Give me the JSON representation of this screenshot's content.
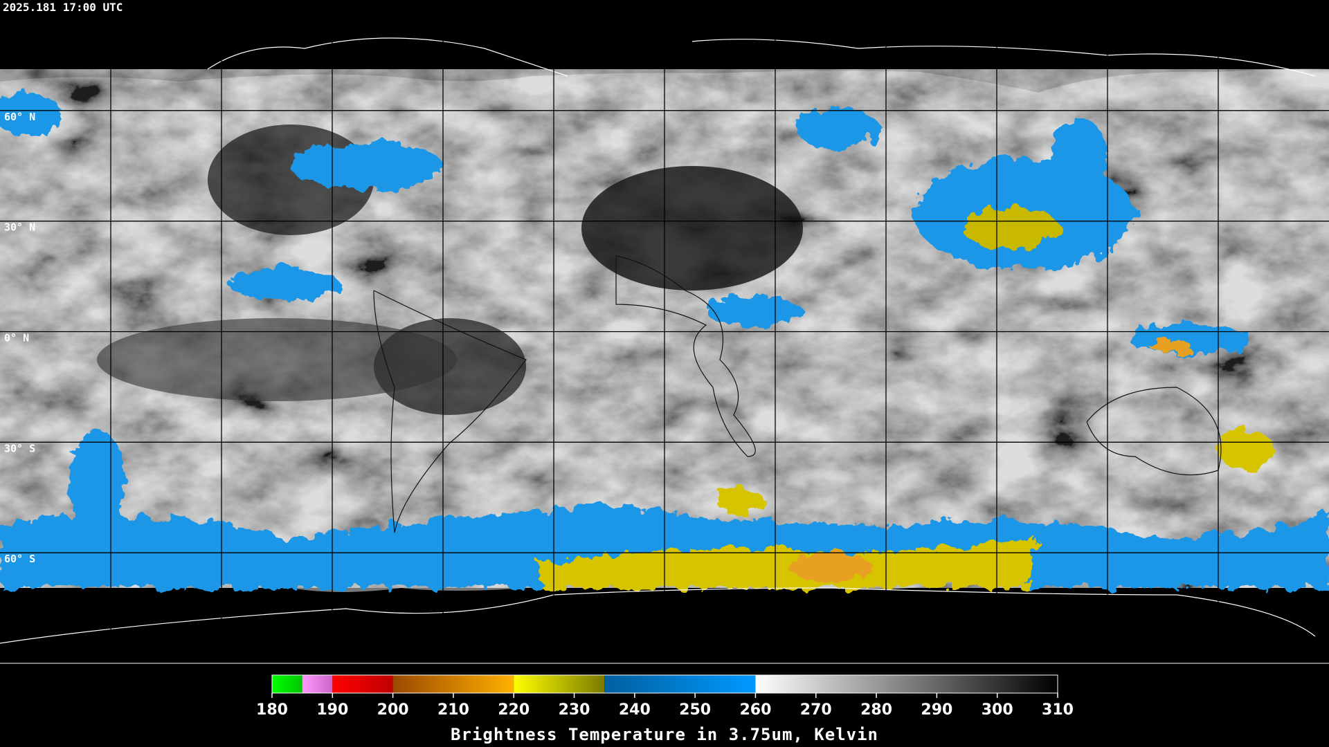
{
  "header": {
    "timestamp": "2025.181 17:00 UTC"
  },
  "map": {
    "lat_labels": [
      "60° N",
      "30° N",
      "0° N",
      "30° S",
      "60° S"
    ]
  },
  "colorbar": {
    "title": "Brightness Temperature in 3.75um, Kelvin",
    "lim": [
      180,
      310
    ],
    "ticks": [
      180,
      190,
      200,
      210,
      220,
      230,
      240,
      250,
      260,
      270,
      280,
      290,
      300,
      310
    ],
    "segments": [
      {
        "from": 180,
        "to": 185,
        "colors": [
          "#00ff00",
          "#00c800"
        ]
      },
      {
        "from": 185,
        "to": 190,
        "colors": [
          "#ff99ff",
          "#cc66cc"
        ]
      },
      {
        "from": 190,
        "to": 200,
        "colors": [
          "#ff0000",
          "#c00000"
        ]
      },
      {
        "from": 200,
        "to": 220,
        "colors": [
          "#9a4a00",
          "#ffb000"
        ]
      },
      {
        "from": 220,
        "to": 235,
        "colors": [
          "#ffff00",
          "#7a7a00"
        ]
      },
      {
        "from": 235,
        "to": 260,
        "colors": [
          "#005f9e",
          "#0099ff"
        ]
      },
      {
        "from": 260,
        "to": 310,
        "colors": [
          "#ffffff",
          "#000000"
        ]
      }
    ]
  }
}
